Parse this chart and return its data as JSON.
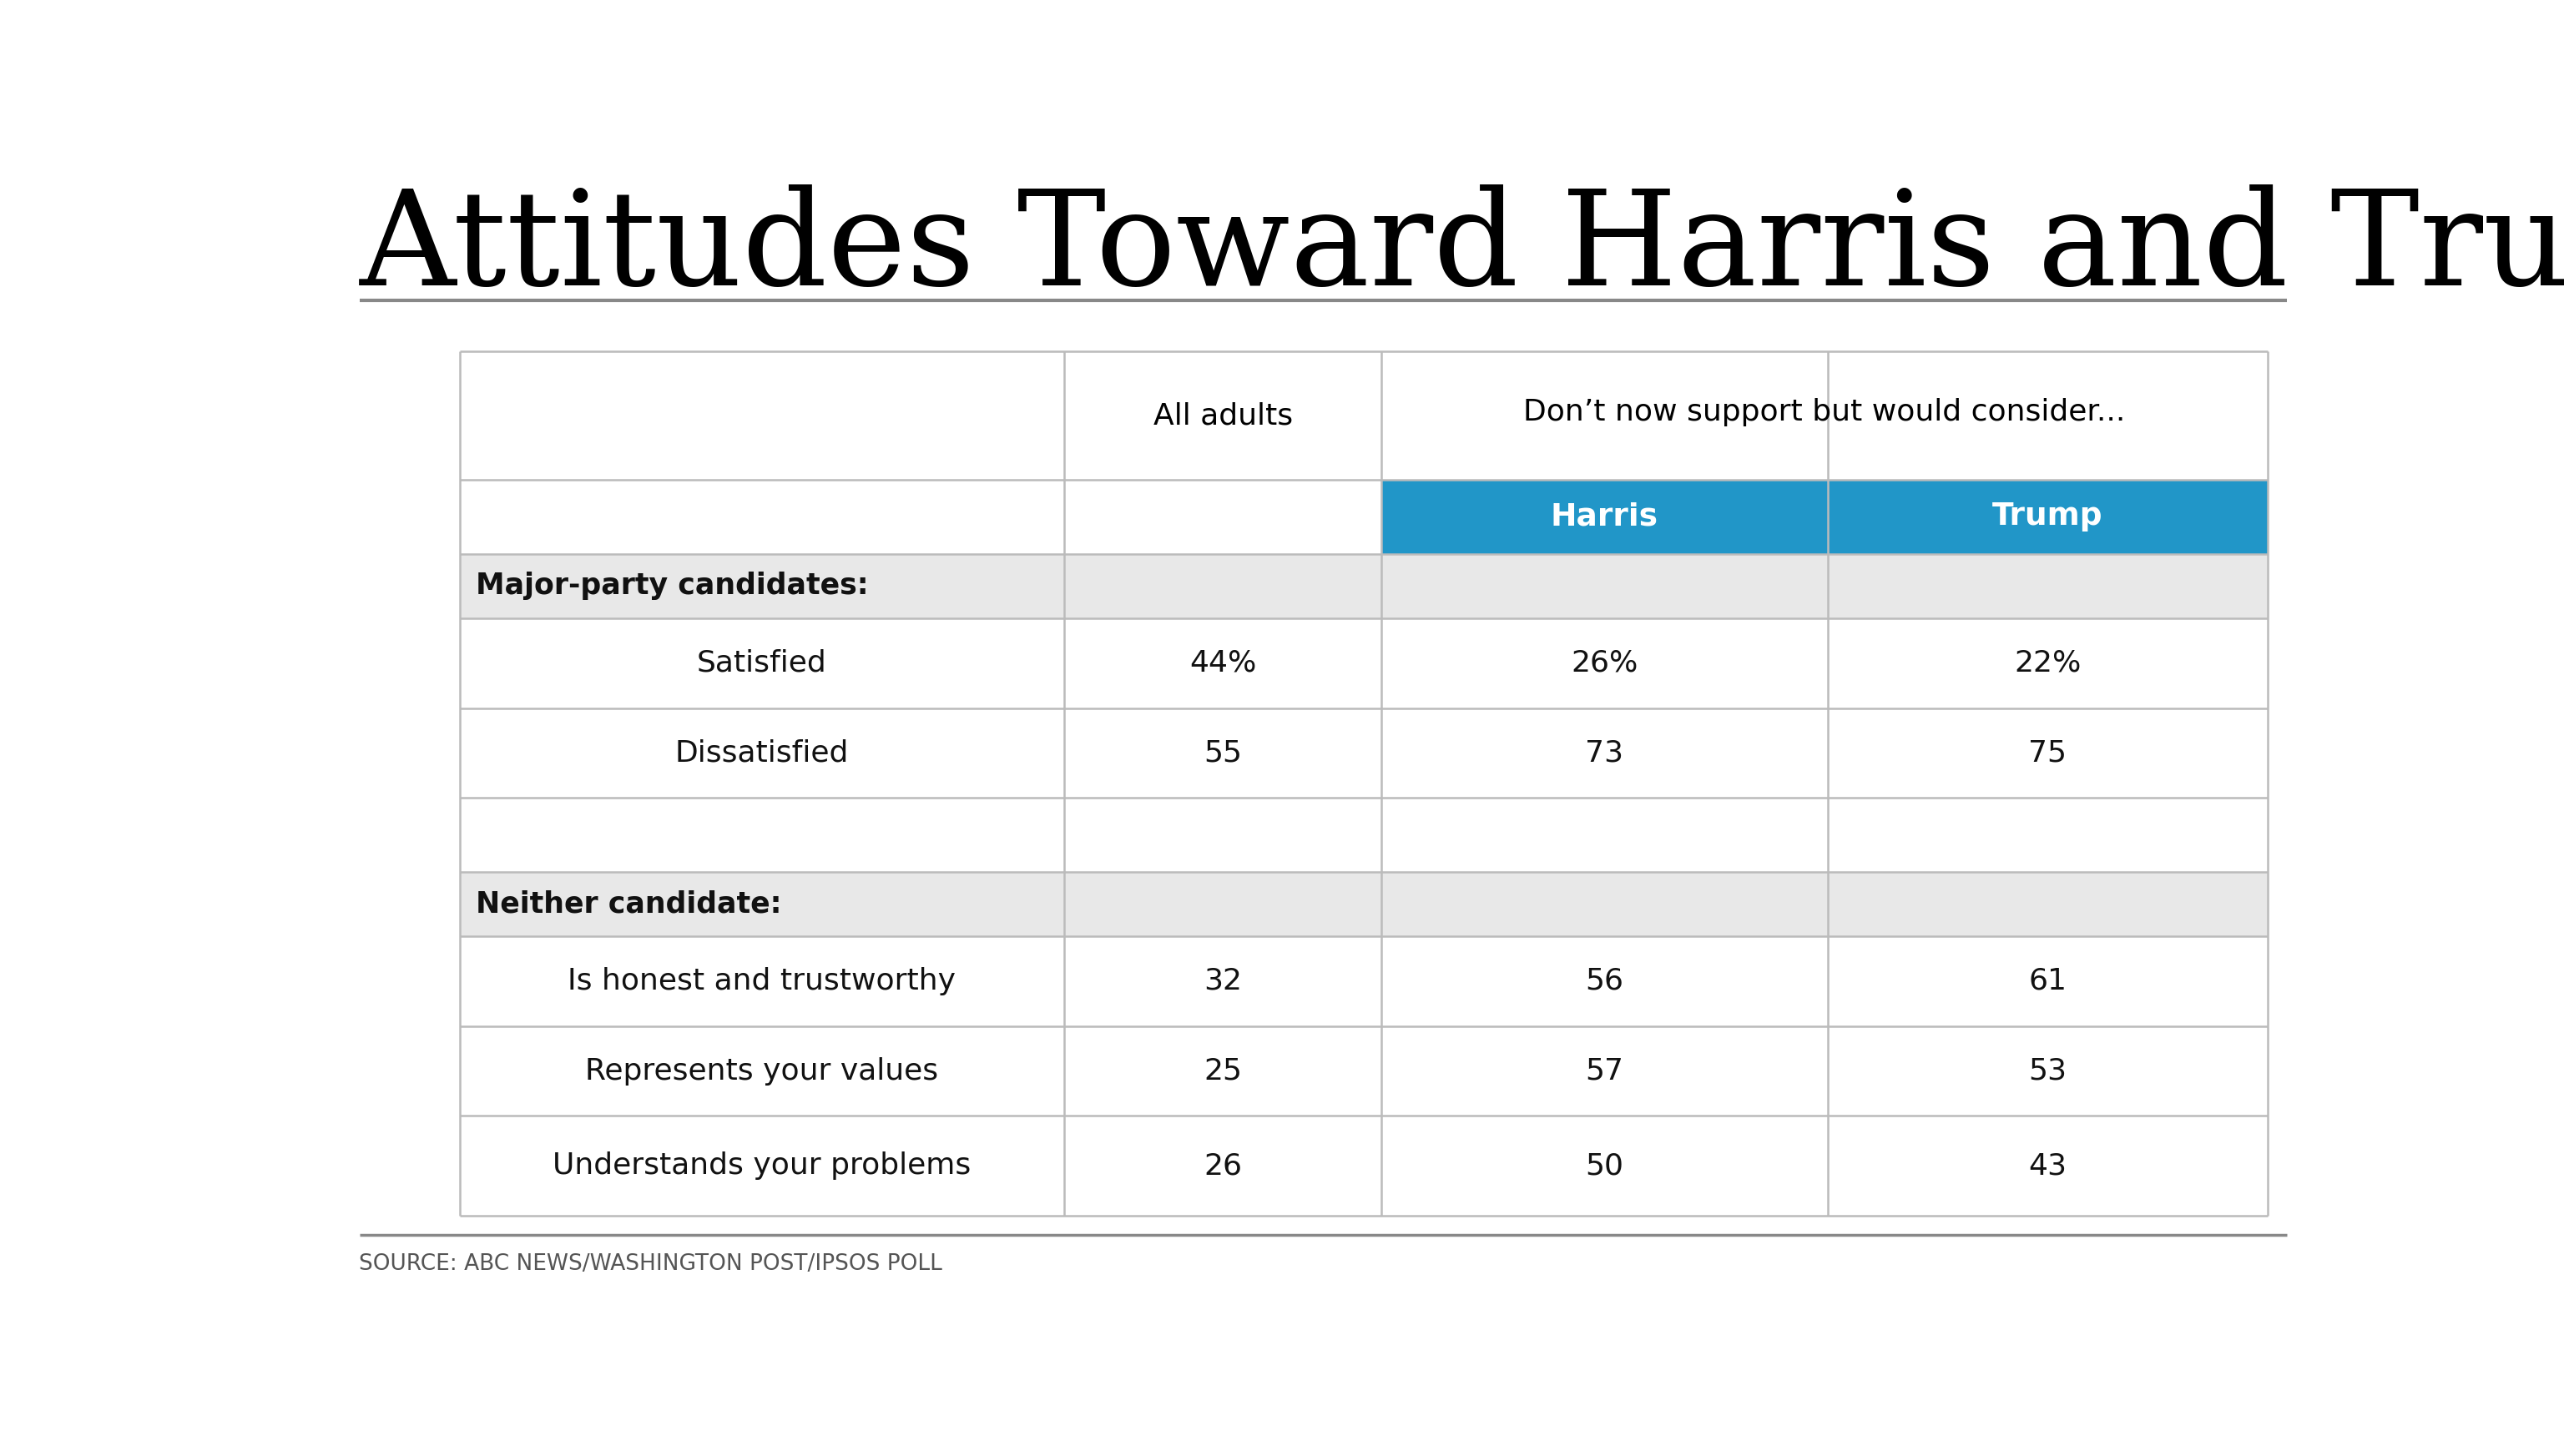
{
  "title": "Attitudes Toward Harris and Trump",
  "header_col2": "All adults",
  "header_group": "Don’t now support but would consider...",
  "header_harris": "Harris",
  "header_trump": "Trump",
  "section1_header": "Major-party candidates:",
  "section2_header": "Neither candidate:",
  "rows": [
    {
      "label": "Satisfied",
      "all_adults": "44%",
      "harris": "26%",
      "trump": "22%"
    },
    {
      "label": "Dissatisfied",
      "all_adults": "55",
      "harris": "73",
      "trump": "75"
    },
    {
      "label": "Is honest and trustworthy",
      "all_adults": "32",
      "harris": "56",
      "trump": "61"
    },
    {
      "label": "Represents your values",
      "all_adults": "25",
      "harris": "57",
      "trump": "53"
    },
    {
      "label": "Understands your problems",
      "all_adults": "26",
      "harris": "50",
      "trump": "43"
    }
  ],
  "source_text": "SOURCE: ABC NEWS/WASHINGTON POST/IPSOS POLL",
  "blue_header_color": "#2196C8",
  "blue_header_text": "#ffffff",
  "section_bg_color": "#e8e8e8",
  "white": "#ffffff",
  "border_color": "#bbbbbb",
  "title_color": "#000000",
  "body_text_color": "#111111",
  "source_text_color": "#555555",
  "rule_color": "#888888"
}
